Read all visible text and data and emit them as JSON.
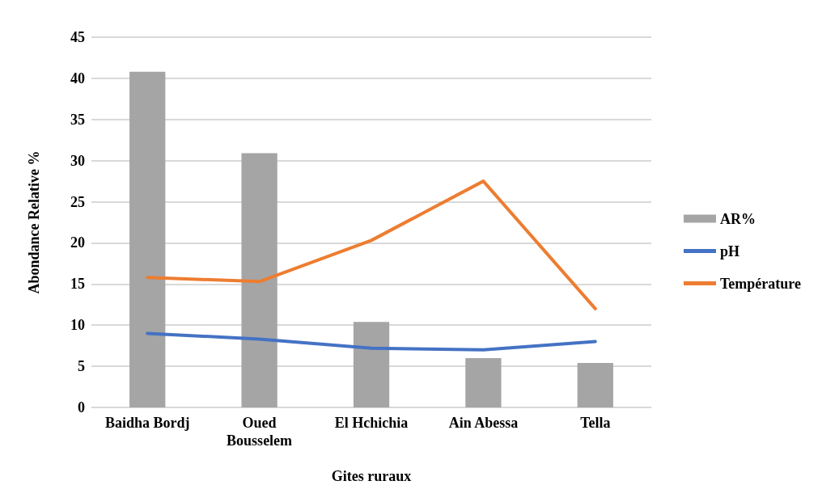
{
  "chart_data": {
    "type": "bar",
    "xlabel": "Gites ruraux",
    "ylabel": "Abondance Relative %",
    "categories": [
      "Baidha Bordj",
      "Oued\nBousselem",
      "El Hchichia",
      "Ain Abessa",
      "Tella"
    ],
    "series": [
      {
        "name": "AR%",
        "color": "#a5a5a5",
        "values": [
          40.8,
          30.9,
          10.4,
          6.0,
          5.4
        ]
      },
      {
        "name": "pH",
        "type": "line",
        "color": "#4472c4",
        "values": [
          9.0,
          8.3,
          7.2,
          7.0,
          8.0
        ]
      },
      {
        "name": "Température",
        "type": "line",
        "color": "#ed7d31",
        "values": [
          15.8,
          15.3,
          20.3,
          27.5,
          12.0
        ]
      }
    ],
    "ylim": [
      0,
      45
    ],
    "yticks": [
      0,
      5,
      10,
      15,
      20,
      25,
      30,
      35,
      40,
      45
    ],
    "grid": "y",
    "legend": "right",
    "marker": "none",
    "line_style": "solid"
  }
}
